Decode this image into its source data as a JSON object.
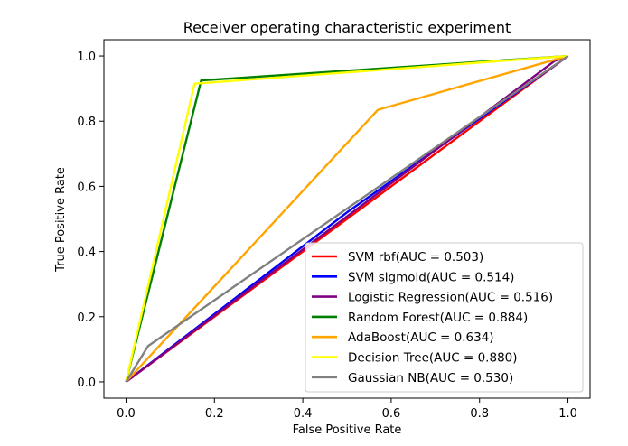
{
  "chart_data": {
    "type": "line",
    "title": "Receiver operating characteristic experiment",
    "xlabel": "False Positive Rate",
    "ylabel": "True Positive Rate",
    "xlim": [
      -0.05,
      1.05
    ],
    "ylim": [
      -0.05,
      1.05
    ],
    "xticks": [
      "0.0",
      "0.2",
      "0.4",
      "0.6",
      "0.8",
      "1.0"
    ],
    "yticks": [
      "0.0",
      "0.2",
      "0.4",
      "0.6",
      "0.8",
      "1.0"
    ],
    "grid": false,
    "legend_position": "lower-right",
    "diagonal": {
      "x": [
        0,
        1
      ],
      "y": [
        0,
        1
      ],
      "style": "dashed",
      "color": "#444444"
    },
    "series": [
      {
        "name": "SVM rbf(AUC = 0.503)",
        "color": "#ff0000",
        "x": [
          0,
          0.0,
          1
        ],
        "y": [
          0,
          0.0,
          1
        ]
      },
      {
        "name": "SVM sigmoid(AUC = 0.514)",
        "color": "#0000ff",
        "x": [
          0,
          0.5,
          1
        ],
        "y": [
          0,
          0.52,
          1
        ]
      },
      {
        "name": "Logistic Regression(AUC = 0.516)",
        "color": "#800080",
        "x": [
          0,
          0.97,
          1
        ],
        "y": [
          0,
          0.985,
          1
        ]
      },
      {
        "name": "Random Forest(AUC = 0.884)",
        "color": "#008000",
        "x": [
          0,
          0.17,
          1
        ],
        "y": [
          0,
          0.925,
          1
        ]
      },
      {
        "name": "AdaBoost(AUC = 0.634)",
        "color": "#ffa500",
        "x": [
          0,
          0.57,
          1
        ],
        "y": [
          0,
          0.835,
          1
        ]
      },
      {
        "name": "Decision Tree(AUC = 0.880)",
        "color": "#ffff00",
        "x": [
          0,
          0.155,
          1
        ],
        "y": [
          0,
          0.915,
          1
        ]
      },
      {
        "name": "Gaussian NB(AUC = 0.530)",
        "color": "#808080",
        "x": [
          0,
          0.05,
          1
        ],
        "y": [
          0,
          0.11,
          1
        ]
      }
    ]
  }
}
